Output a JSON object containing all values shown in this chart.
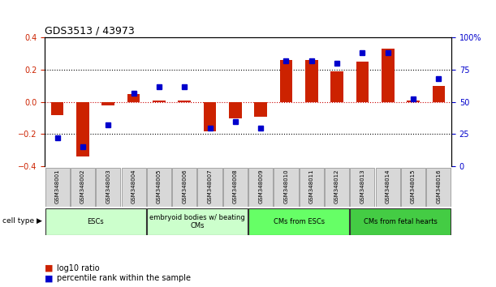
{
  "title": "GDS3513 / 43973",
  "samples": [
    "GSM348001",
    "GSM348002",
    "GSM348003",
    "GSM348004",
    "GSM348005",
    "GSM348006",
    "GSM348007",
    "GSM348008",
    "GSM348009",
    "GSM348010",
    "GSM348011",
    "GSM348012",
    "GSM348013",
    "GSM348014",
    "GSM348015",
    "GSM348016"
  ],
  "log10_ratio": [
    -0.08,
    -0.34,
    -0.02,
    0.05,
    0.01,
    0.01,
    -0.18,
    -0.1,
    -0.09,
    0.26,
    0.26,
    0.19,
    0.25,
    0.33,
    0.01,
    0.1
  ],
  "percentile_rank": [
    22,
    15,
    32,
    57,
    62,
    62,
    30,
    35,
    30,
    82,
    82,
    80,
    88,
    88,
    52,
    68
  ],
  "cell_type_groups": [
    {
      "label": "ESCs",
      "start": 0,
      "end": 3,
      "color": "#ccffcc"
    },
    {
      "label": "embryoid bodies w/ beating\nCMs",
      "start": 4,
      "end": 7,
      "color": "#ccffcc"
    },
    {
      "label": "CMs from ESCs",
      "start": 8,
      "end": 11,
      "color": "#66ff66"
    },
    {
      "label": "CMs from fetal hearts",
      "start": 12,
      "end": 15,
      "color": "#44cc44"
    }
  ],
  "bar_color": "#cc2200",
  "dot_color": "#0000cc",
  "ylim_left": [
    -0.4,
    0.4
  ],
  "ylim_right": [
    0,
    100
  ],
  "yticks_left": [
    -0.4,
    -0.2,
    0.0,
    0.2,
    0.4
  ],
  "yticks_right": [
    0,
    25,
    50,
    75,
    100
  ],
  "ytick_labels_right": [
    "0",
    "25",
    "50",
    "75",
    "100%"
  ],
  "legend_items": [
    {
      "color": "#cc2200",
      "label": "log10 ratio"
    },
    {
      "color": "#0000cc",
      "label": "percentile rank within the sample"
    }
  ],
  "cell_type_label": "cell type",
  "background_color": "#ffffff",
  "tick_label_color_left": "#cc2200",
  "tick_label_color_right": "#0000cc"
}
